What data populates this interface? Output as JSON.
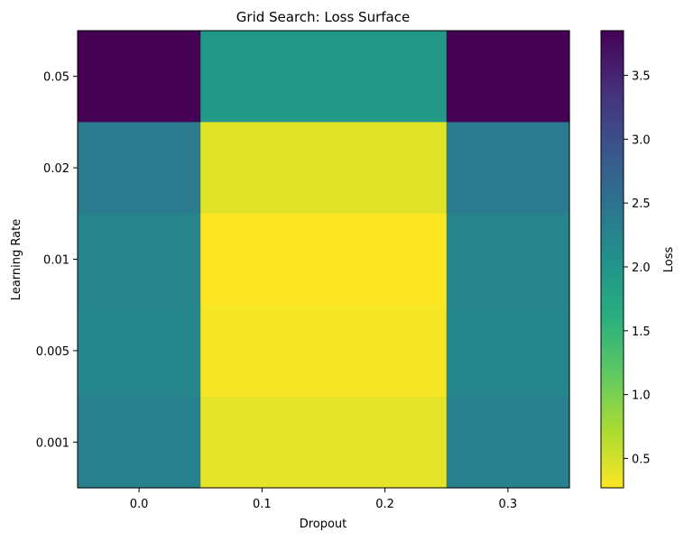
{
  "chart_data": {
    "type": "heatmap",
    "title": "Grid Search: Loss Surface",
    "xlabel": "Dropout",
    "ylabel": "Learning Rate",
    "x_categories": [
      "0.0",
      "0.1",
      "0.2",
      "0.3"
    ],
    "y_categories": [
      "0.05",
      "0.02",
      "0.01",
      "0.005",
      "0.001"
    ],
    "values": [
      [
        3.85,
        1.95,
        1.95,
        3.85
      ],
      [
        2.38,
        0.42,
        0.42,
        2.38
      ],
      [
        2.25,
        0.27,
        0.27,
        2.25
      ],
      [
        2.22,
        0.3,
        0.3,
        2.22
      ],
      [
        2.3,
        0.4,
        0.4,
        2.3
      ]
    ],
    "colormap": "viridis_r",
    "vmin": 0.27,
    "vmax": 3.85,
    "colorbar": {
      "label": "Loss",
      "ticks": [
        "0.5",
        "1.0",
        "1.5",
        "2.0",
        "2.5",
        "3.0",
        "3.5"
      ]
    },
    "grid": false
  }
}
